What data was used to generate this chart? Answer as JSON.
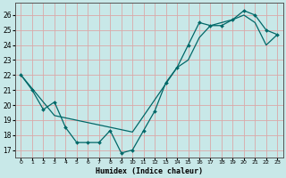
{
  "xlabel": "Humidex (Indice chaleur)",
  "bg_color": "#c8e8e8",
  "line_color": "#006868",
  "grid_color": "#daa8a8",
  "xlim": [
    -0.5,
    23.5
  ],
  "ylim": [
    16.5,
    26.8
  ],
  "xticks": [
    0,
    1,
    2,
    3,
    4,
    5,
    6,
    7,
    8,
    9,
    10,
    11,
    12,
    13,
    14,
    15,
    16,
    17,
    18,
    19,
    20,
    21,
    22,
    23
  ],
  "yticks": [
    17,
    18,
    19,
    20,
    21,
    22,
    23,
    24,
    25,
    26
  ],
  "line1_x": [
    0,
    1,
    2,
    3,
    4,
    5,
    6,
    7,
    8,
    9,
    10,
    11,
    12,
    13,
    14,
    15,
    16,
    17,
    18,
    19,
    20,
    21,
    22,
    23
  ],
  "line1_y": [
    22.0,
    21.0,
    19.7,
    20.2,
    18.5,
    17.5,
    17.5,
    17.5,
    18.3,
    16.8,
    17.0,
    18.3,
    19.6,
    21.5,
    22.5,
    24.0,
    25.5,
    25.3,
    25.3,
    25.7,
    26.3,
    26.0,
    25.0,
    24.7
  ],
  "line2_x": [
    0,
    3,
    10,
    14,
    15,
    16,
    17,
    18,
    19,
    20,
    21,
    22,
    23
  ],
  "line2_y": [
    22.0,
    19.3,
    18.2,
    22.5,
    23.0,
    24.5,
    25.3,
    25.5,
    25.7,
    26.0,
    25.5,
    24.0,
    24.7
  ]
}
